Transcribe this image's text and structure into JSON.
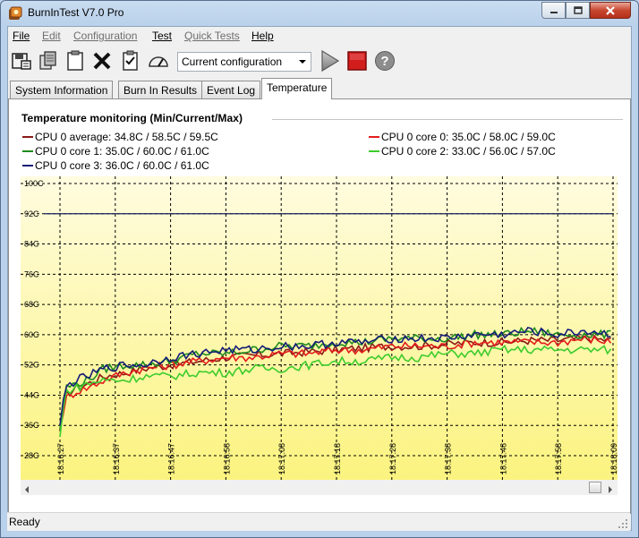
{
  "window": {
    "title": "BurnInTest V7.0 Pro"
  },
  "menu": [
    {
      "label": "File",
      "enabled": true
    },
    {
      "label": "Edit",
      "enabled": false
    },
    {
      "label": "Configuration",
      "enabled": false
    },
    {
      "label": "Test",
      "enabled": true
    },
    {
      "label": "Quick Tests",
      "enabled": false
    },
    {
      "label": "Help",
      "enabled": true
    }
  ],
  "toolbar": {
    "config_selected": "Current configuration",
    "icons": [
      "save-results-icon",
      "copy-icon",
      "clipboard-icon",
      "clear-icon",
      "checklist-icon",
      "gauge-icon",
      "play-icon",
      "stop-icon",
      "help-icon"
    ]
  },
  "tabs": [
    "System Information",
    "Burn In Results",
    "Event Log",
    "Temperature"
  ],
  "active_tab": "Temperature",
  "temperature": {
    "group_title": "Temperature monitoring  (Min/Current/Max)",
    "legend": [
      {
        "label": "CPU 0 average: 34.8C / 58.5C / 59.5C",
        "color": "#8b1a1a"
      },
      {
        "label": "CPU 0 core 0: 35.0C / 58.0C / 59.0C",
        "color": "#e41c1c"
      },
      {
        "label": "CPU 0 core 1: 35.0C / 60.0C / 61.0C",
        "color": "#1e8c1e"
      },
      {
        "label": "CPU 0 core 2: 33.0C / 56.0C / 57.0C",
        "color": "#3ccc2c"
      },
      {
        "label": "CPU 0 core 3: 36.0C / 60.0C / 61.0C",
        "color": "#141c78"
      }
    ]
  },
  "chart_data": {
    "type": "line",
    "y_tick_labels": [
      "100C",
      "92C",
      "84C",
      "76C",
      "68C",
      "60C",
      "52C",
      "44C",
      "36C",
      "28C"
    ],
    "ylim": [
      26,
      102
    ],
    "x_tick_labels": [
      "18:16:27",
      "18:16:37",
      "18:16:47",
      "18:16:58",
      "18:17:08",
      "18:17:18",
      "18:17:28",
      "18:17:38",
      "18:17:48",
      "18:17:58",
      "18:18:09"
    ],
    "grid": true,
    "threshold_line": 92,
    "background": [
      "#fffbd8",
      "#fdf68f"
    ],
    "series": [
      {
        "name": "CPU 0 average",
        "color": "#8b1a1a",
        "x": [
          0,
          1,
          3,
          5,
          8,
          12,
          15,
          20,
          25,
          30,
          35,
          40,
          45,
          50,
          55,
          60,
          65,
          70,
          75,
          80,
          85,
          90,
          95,
          100
        ],
        "y": [
          34.8,
          44,
          46,
          47,
          49,
          50,
          51,
          52,
          53,
          54,
          54.5,
          55,
          55.5,
          56,
          56.5,
          57,
          57,
          57.5,
          58,
          58,
          58.5,
          58.5,
          59,
          58.5
        ]
      },
      {
        "name": "CPU 0 core 0",
        "color": "#e41c1c",
        "x": [
          0,
          1,
          3,
          5,
          8,
          12,
          15,
          20,
          25,
          30,
          35,
          40,
          45,
          50,
          55,
          60,
          65,
          70,
          75,
          80,
          85,
          90,
          95,
          100
        ],
        "y": [
          35,
          43,
          45,
          46,
          48,
          50,
          51,
          52,
          53,
          54,
          54,
          55,
          55,
          56,
          56,
          57,
          57,
          57,
          58,
          58,
          58,
          58,
          59,
          58
        ]
      },
      {
        "name": "CPU 0 core 1",
        "color": "#1e8c1e",
        "x": [
          0,
          1,
          3,
          5,
          8,
          12,
          15,
          20,
          25,
          30,
          35,
          40,
          45,
          50,
          55,
          60,
          65,
          70,
          75,
          80,
          85,
          90,
          95,
          100
        ],
        "y": [
          35,
          46,
          47,
          48,
          51,
          52,
          52,
          53,
          55,
          55,
          56,
          57,
          57,
          58,
          58,
          59,
          59,
          59,
          60,
          60,
          61,
          60,
          60,
          60
        ]
      },
      {
        "name": "CPU 0 core 2",
        "color": "#3ccc2c",
        "x": [
          0,
          1,
          3,
          5,
          8,
          12,
          15,
          20,
          25,
          30,
          35,
          40,
          45,
          50,
          55,
          60,
          65,
          70,
          75,
          80,
          85,
          90,
          95,
          100
        ],
        "y": [
          33,
          45,
          46,
          47,
          48,
          48,
          49,
          49,
          50,
          50,
          51,
          51,
          52,
          53,
          53,
          54,
          54,
          55,
          55,
          56,
          56,
          56,
          56,
          56
        ]
      },
      {
        "name": "CPU 0 core 3",
        "color": "#141c78",
        "x": [
          0,
          1,
          3,
          5,
          8,
          12,
          15,
          20,
          25,
          30,
          35,
          40,
          45,
          50,
          55,
          60,
          65,
          70,
          75,
          80,
          85,
          90,
          95,
          100
        ],
        "y": [
          36,
          46,
          48,
          49,
          51,
          52,
          52,
          54,
          55,
          56,
          56,
          57,
          57,
          58,
          58,
          59,
          59,
          59,
          60,
          60,
          61,
          60,
          61,
          60
        ]
      }
    ]
  },
  "status": {
    "text": "Ready"
  }
}
